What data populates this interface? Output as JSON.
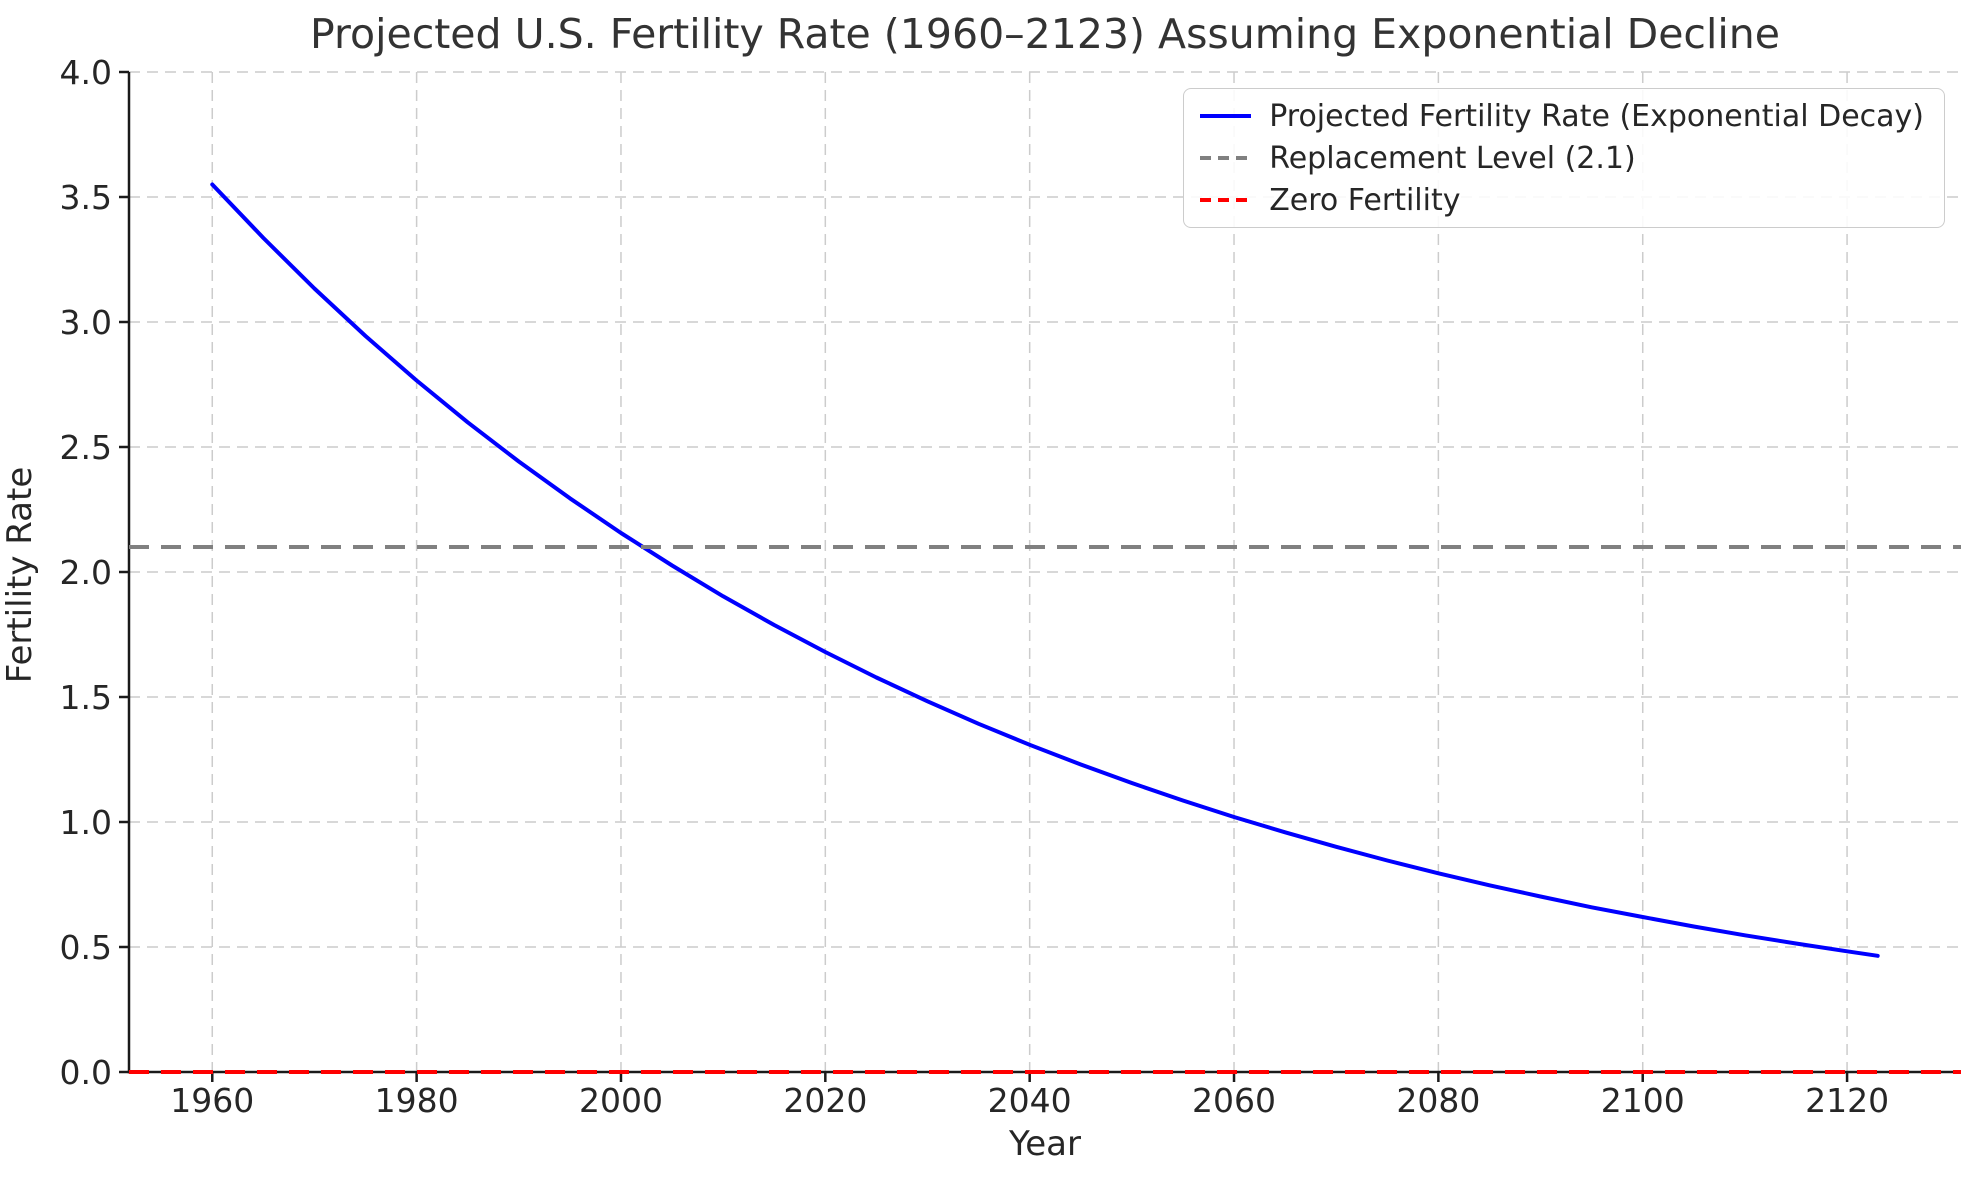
{
  "figure": {
    "background": "#ffffff",
    "text_color": "#262626",
    "spine_color": "#1a1a1a"
  },
  "chart_data": {
    "type": "line",
    "title": "Projected U.S. Fertility Rate (1960–2123) Assuming Exponential Decline",
    "xlabel": "Year",
    "ylabel": "Fertility Rate",
    "xlim": [
      1951.85,
      2131.15
    ],
    "ylim": [
      0.0,
      4.0
    ],
    "xticks": [
      1960,
      1980,
      2000,
      2020,
      2040,
      2060,
      2080,
      2100,
      2120
    ],
    "yticks": [
      0.0,
      0.5,
      1.0,
      1.5,
      2.0,
      2.5,
      3.0,
      3.5,
      4.0
    ],
    "ytick_labels": [
      "0.0",
      "0.5",
      "1.0",
      "1.5",
      "2.0",
      "2.5",
      "3.0",
      "3.5",
      "4.0"
    ],
    "grid": {
      "visible": true,
      "color": "#cccccc",
      "style": "dashed"
    },
    "legend": {
      "position": "upper right",
      "border_color": "#cccccc"
    },
    "series": [
      {
        "name": "Projected Fertility Rate (Exponential Decay)",
        "color": "#0000ff",
        "style": "solid",
        "x": [
          1960,
          1965,
          1970,
          1975,
          1980,
          1985,
          1990,
          1995,
          2000,
          2005,
          2010,
          2015,
          2020,
          2025,
          2030,
          2035,
          2040,
          2045,
          2050,
          2055,
          2060,
          2065,
          2070,
          2075,
          2080,
          2085,
          2090,
          2095,
          2100,
          2105,
          2110,
          2115,
          2120,
          2123
        ],
        "y": [
          3.55,
          3.336,
          3.134,
          2.944,
          2.766,
          2.599,
          2.442,
          2.295,
          2.156,
          2.026,
          1.903,
          1.788,
          1.68,
          1.578,
          1.483,
          1.393,
          1.309,
          1.23,
          1.156,
          1.086,
          1.02,
          0.959,
          0.901,
          0.846,
          0.795,
          0.747,
          0.702,
          0.659,
          0.62,
          0.582,
          0.547,
          0.514,
          0.483,
          0.465
        ]
      },
      {
        "name": "Replacement Level (2.1)",
        "color": "#808080",
        "style": "dashed",
        "y_const": 2.1
      },
      {
        "name": "Zero Fertility",
        "color": "#ff0000",
        "style": "dashed",
        "y_const": 0.0
      }
    ]
  }
}
